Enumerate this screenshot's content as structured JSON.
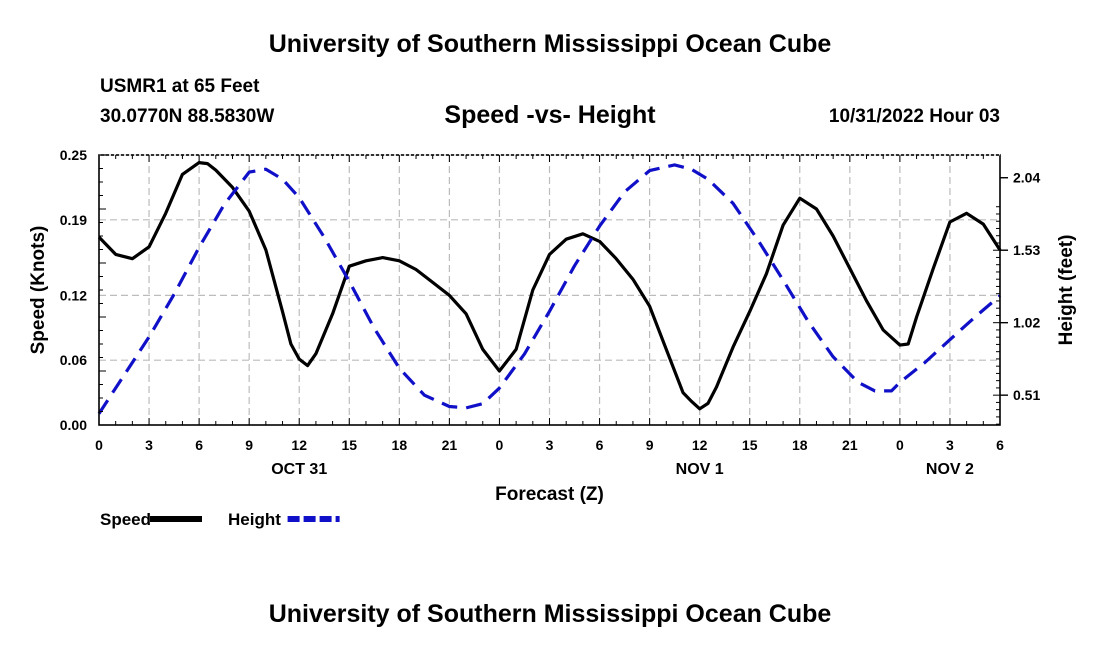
{
  "header": {
    "title": "University of Southern Mississippi Ocean Cube",
    "station": "USMR1 at 65 Feet",
    "coords": "30.0770N  88.5830W",
    "subtitle": "Speed -vs- Height",
    "datetime": "10/31/2022 Hour 03"
  },
  "footer": {
    "title": "University of Southern Mississippi Ocean Cube"
  },
  "chart_data": {
    "type": "line",
    "title": "Speed -vs- Height",
    "xlabel": "Forecast (Z)",
    "ylabel": "Speed (Knots)",
    "y2label": "Height (feet)",
    "xlim": [
      0,
      54
    ],
    "ylim": [
      0,
      0.25
    ],
    "y2lim": [
      0.3,
      2.2
    ],
    "x_ticks": [
      0,
      3,
      6,
      9,
      12,
      15,
      18,
      21,
      24,
      27,
      30,
      33,
      36,
      39,
      42,
      45,
      48,
      51,
      54
    ],
    "x_tick_labels": [
      "0",
      "3",
      "6",
      "9",
      "12",
      "15",
      "18",
      "21",
      "0",
      "3",
      "6",
      "9",
      "12",
      "15",
      "18",
      "21",
      "0",
      "3",
      "6"
    ],
    "date_labels": [
      {
        "label": "OCT 31",
        "x": 12
      },
      {
        "label": "NOV 1",
        "x": 36
      },
      {
        "label": "NOV 2",
        "x": 51
      }
    ],
    "y_ticks": [
      0,
      0.06,
      0.12,
      0.19,
      0.25
    ],
    "y_tick_labels": [
      "0.00",
      "0.06",
      "0.12",
      "0.19",
      "0.25"
    ],
    "y2_ticks": [
      0.51,
      1.02,
      1.53,
      2.04
    ],
    "y2_tick_labels": [
      "0.51",
      "1.02",
      "1.53",
      "2.04"
    ],
    "grid": true,
    "legend": {
      "position": "bottom-left",
      "entries": [
        {
          "name": "Speed",
          "color": "#000000",
          "style": "solid"
        },
        {
          "name": "Height",
          "color": "#1010c8",
          "style": "dashed"
        }
      ]
    },
    "series": [
      {
        "name": "Speed",
        "axis": "left",
        "color": "#000000",
        "style": "solid",
        "x": [
          0,
          1,
          2,
          3,
          4,
          5,
          6,
          6.5,
          7,
          8,
          9,
          10,
          11,
          11.5,
          12,
          12.5,
          13,
          14,
          15,
          16,
          17,
          18,
          19,
          20,
          21,
          22,
          23,
          24,
          25,
          26,
          27,
          28,
          29,
          30,
          31,
          32,
          33,
          34,
          35,
          35.5,
          36,
          36.5,
          37,
          38,
          39,
          40,
          41,
          42,
          43,
          44,
          45,
          46,
          47,
          48,
          48.5,
          49,
          50,
          51,
          52,
          53,
          54
        ],
        "values": [
          0.174,
          0.158,
          0.154,
          0.165,
          0.196,
          0.232,
          0.243,
          0.242,
          0.236,
          0.22,
          0.198,
          0.162,
          0.105,
          0.075,
          0.061,
          0.055,
          0.066,
          0.103,
          0.147,
          0.152,
          0.155,
          0.152,
          0.144,
          0.132,
          0.12,
          0.103,
          0.07,
          0.05,
          0.07,
          0.125,
          0.158,
          0.172,
          0.177,
          0.17,
          0.154,
          0.135,
          0.11,
          0.07,
          0.03,
          0.022,
          0.015,
          0.02,
          0.035,
          0.072,
          0.105,
          0.14,
          0.185,
          0.21,
          0.2,
          0.175,
          0.145,
          0.115,
          0.088,
          0.074,
          0.075,
          0.1,
          0.145,
          0.188,
          0.196,
          0.186,
          0.162
        ]
      },
      {
        "name": "Height",
        "axis": "right",
        "color": "#1010c8",
        "style": "dashed",
        "x": [
          0,
          1.5,
          3,
          4.5,
          6,
          7.5,
          9,
          10,
          11,
          12,
          13.5,
          15,
          16.5,
          18,
          19.5,
          21,
          22,
          23,
          24,
          25.5,
          27,
          28.5,
          30,
          31.5,
          33,
          34.5,
          35.5,
          36.5,
          38,
          39.5,
          41,
          42.5,
          44,
          45.5,
          46.5,
          47.5,
          48,
          49.5,
          51,
          52.5,
          54
        ],
        "values": [
          0.38,
          0.65,
          0.92,
          1.22,
          1.55,
          1.85,
          2.08,
          2.1,
          2.03,
          1.9,
          1.62,
          1.31,
          0.98,
          0.7,
          0.51,
          0.43,
          0.42,
          0.45,
          0.56,
          0.8,
          1.1,
          1.42,
          1.7,
          1.94,
          2.09,
          2.13,
          2.1,
          2.03,
          1.86,
          1.6,
          1.32,
          1.03,
          0.78,
          0.6,
          0.54,
          0.54,
          0.6,
          0.74,
          0.9,
          1.06,
          1.21
        ]
      }
    ]
  }
}
